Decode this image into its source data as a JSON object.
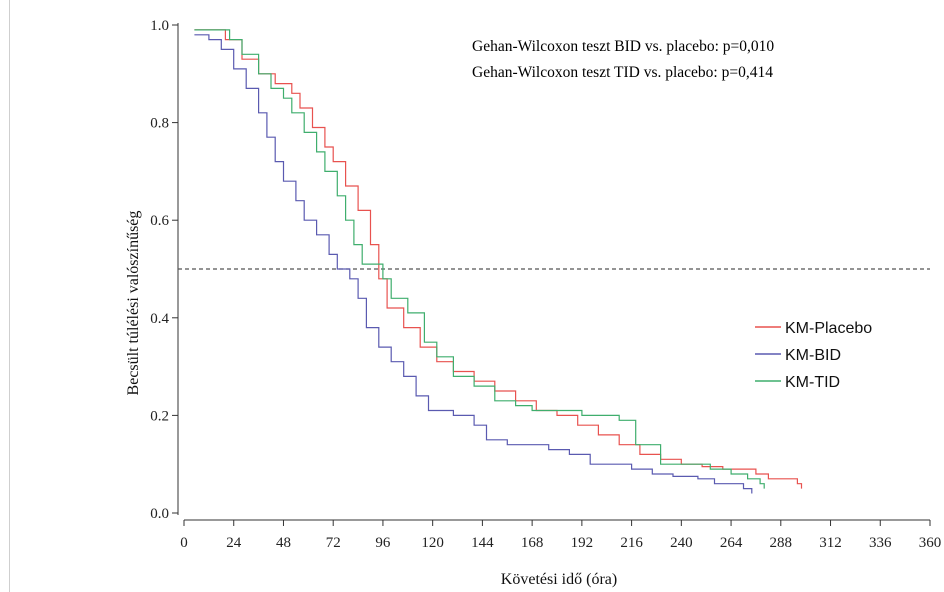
{
  "chart_data": {
    "type": "line",
    "subtype": "kaplan-meier step",
    "title": "",
    "xlabel": "Követési idő (óra)",
    "ylabel": "Becsült túlélési valószínűség",
    "xlim": [
      0,
      360
    ],
    "ylim": [
      0,
      1
    ],
    "xticks": [
      0,
      24,
      48,
      72,
      96,
      120,
      144,
      168,
      192,
      216,
      240,
      264,
      288,
      312,
      336,
      360
    ],
    "yticks": [
      0.0,
      0.2,
      0.4,
      0.6,
      0.8,
      1.0
    ],
    "ytick_labels": [
      "0.0",
      "0.2",
      "0.4",
      "0.6",
      "0.8",
      "1.0"
    ],
    "grid": false,
    "reference_line": {
      "y": 0.5,
      "style": "dashed",
      "color": "#555555"
    },
    "annotations": [
      "Gehan-Wilcoxon teszt BID vs. placebo: p=0,010",
      "Gehan-Wilcoxon teszt TID vs. placebo: p=0,414"
    ],
    "legend": {
      "position": "right"
    },
    "series": [
      {
        "name": "KM-Placebo",
        "color": "#e8524f",
        "points": [
          [
            5,
            0.99
          ],
          [
            16,
            0.99
          ],
          [
            20,
            0.97
          ],
          [
            28,
            0.93
          ],
          [
            36,
            0.9
          ],
          [
            44,
            0.88
          ],
          [
            52,
            0.86
          ],
          [
            56,
            0.83
          ],
          [
            62,
            0.79
          ],
          [
            68,
            0.75
          ],
          [
            72,
            0.72
          ],
          [
            78,
            0.67
          ],
          [
            84,
            0.62
          ],
          [
            90,
            0.55
          ],
          [
            94,
            0.48
          ],
          [
            98,
            0.42
          ],
          [
            106,
            0.38
          ],
          [
            114,
            0.34
          ],
          [
            122,
            0.31
          ],
          [
            130,
            0.29
          ],
          [
            140,
            0.27
          ],
          [
            150,
            0.25
          ],
          [
            160,
            0.23
          ],
          [
            170,
            0.21
          ],
          [
            180,
            0.2
          ],
          [
            190,
            0.18
          ],
          [
            200,
            0.16
          ],
          [
            210,
            0.14
          ],
          [
            220,
            0.12
          ],
          [
            230,
            0.11
          ],
          [
            240,
            0.1
          ],
          [
            250,
            0.095
          ],
          [
            260,
            0.09
          ],
          [
            270,
            0.09
          ],
          [
            276,
            0.08
          ],
          [
            282,
            0.07
          ],
          [
            292,
            0.07
          ],
          [
            296,
            0.06
          ],
          [
            298,
            0.05
          ]
        ]
      },
      {
        "name": "KM-BID",
        "color": "#5a5ab0",
        "points": [
          [
            5,
            0.98
          ],
          [
            12,
            0.97
          ],
          [
            18,
            0.95
          ],
          [
            24,
            0.91
          ],
          [
            30,
            0.87
          ],
          [
            36,
            0.82
          ],
          [
            40,
            0.77
          ],
          [
            44,
            0.72
          ],
          [
            48,
            0.68
          ],
          [
            54,
            0.64
          ],
          [
            58,
            0.6
          ],
          [
            64,
            0.57
          ],
          [
            70,
            0.53
          ],
          [
            74,
            0.5
          ],
          [
            80,
            0.48
          ],
          [
            84,
            0.44
          ],
          [
            88,
            0.38
          ],
          [
            94,
            0.34
          ],
          [
            100,
            0.31
          ],
          [
            106,
            0.28
          ],
          [
            112,
            0.24
          ],
          [
            118,
            0.21
          ],
          [
            130,
            0.2
          ],
          [
            140,
            0.18
          ],
          [
            146,
            0.15
          ],
          [
            156,
            0.14
          ],
          [
            166,
            0.14
          ],
          [
            176,
            0.13
          ],
          [
            186,
            0.12
          ],
          [
            196,
            0.1
          ],
          [
            206,
            0.1
          ],
          [
            216,
            0.09
          ],
          [
            226,
            0.08
          ],
          [
            236,
            0.075
          ],
          [
            248,
            0.07
          ],
          [
            256,
            0.06
          ],
          [
            264,
            0.06
          ],
          [
            270,
            0.05
          ],
          [
            274,
            0.04
          ]
        ]
      },
      {
        "name": "KM-TID",
        "color": "#3fae6d",
        "points": [
          [
            5,
            0.99
          ],
          [
            18,
            0.99
          ],
          [
            22,
            0.97
          ],
          [
            28,
            0.94
          ],
          [
            36,
            0.9
          ],
          [
            42,
            0.87
          ],
          [
            48,
            0.85
          ],
          [
            52,
            0.82
          ],
          [
            58,
            0.78
          ],
          [
            64,
            0.74
          ],
          [
            68,
            0.7
          ],
          [
            74,
            0.65
          ],
          [
            78,
            0.6
          ],
          [
            82,
            0.55
          ],
          [
            86,
            0.51
          ],
          [
            96,
            0.48
          ],
          [
            100,
            0.44
          ],
          [
            108,
            0.41
          ],
          [
            116,
            0.35
          ],
          [
            122,
            0.32
          ],
          [
            130,
            0.28
          ],
          [
            140,
            0.26
          ],
          [
            150,
            0.23
          ],
          [
            160,
            0.22
          ],
          [
            168,
            0.21
          ],
          [
            180,
            0.21
          ],
          [
            192,
            0.2
          ],
          [
            200,
            0.2
          ],
          [
            210,
            0.19
          ],
          [
            218,
            0.14
          ],
          [
            230,
            0.1
          ],
          [
            244,
            0.1
          ],
          [
            254,
            0.09
          ],
          [
            264,
            0.08
          ],
          [
            272,
            0.07
          ],
          [
            278,
            0.06
          ],
          [
            280,
            0.05
          ]
        ]
      }
    ]
  }
}
